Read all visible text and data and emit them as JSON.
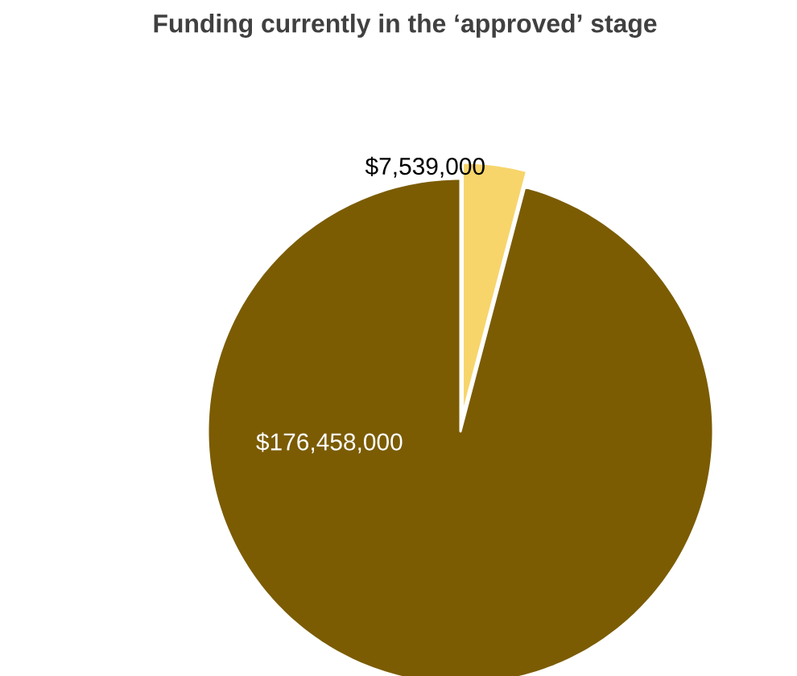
{
  "chart_data": {
    "type": "pie",
    "title": "Funding currently in the ‘approved’ stage",
    "categories": [
      null,
      null
    ],
    "values": [
      7539000,
      176458000
    ],
    "colors": [
      "#f7d56b",
      "#7b5c03"
    ],
    "value_labels": [
      "$7,539,000",
      "$176,458,000"
    ]
  }
}
